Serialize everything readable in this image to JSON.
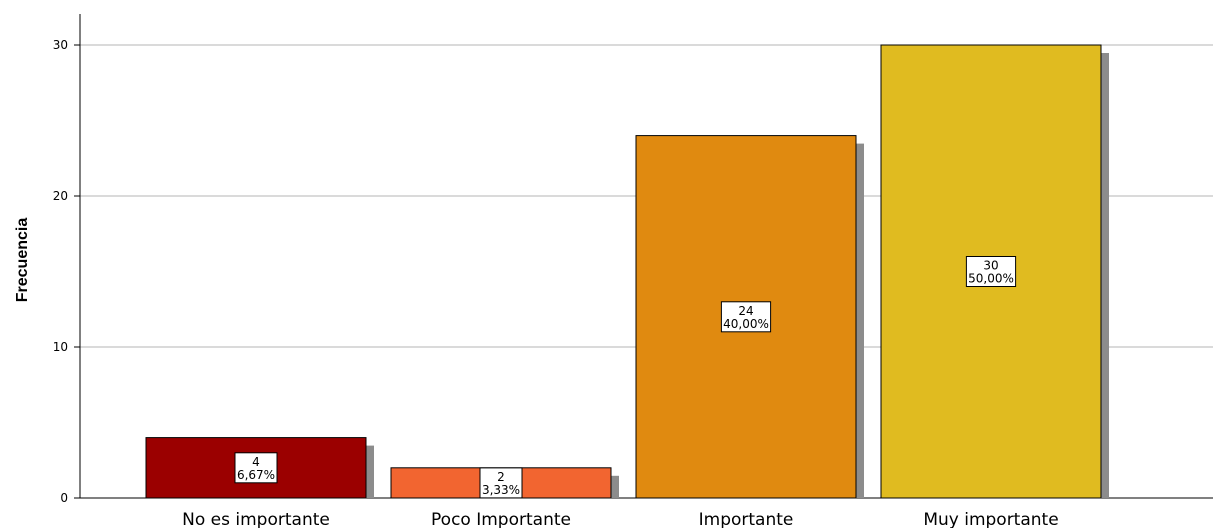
{
  "chart_data": {
    "type": "bar",
    "title": "",
    "xlabel": "",
    "ylabel": "Frecuencia",
    "ylim": [
      0,
      32
    ],
    "yticks": [
      0,
      10,
      20,
      30
    ],
    "grid": true,
    "categories": [
      "No es importante",
      "Poco Importante",
      "Importante",
      "Muy importante"
    ],
    "values": [
      4,
      2,
      24,
      30
    ],
    "percent_labels": [
      "6,67%",
      "3,33%",
      "40,00%",
      "50,00%"
    ],
    "colors": [
      "#9b0000",
      "#f26530",
      "#e08a10",
      "#e0bb20"
    ],
    "shadow_color": "#8c8c8c"
  }
}
